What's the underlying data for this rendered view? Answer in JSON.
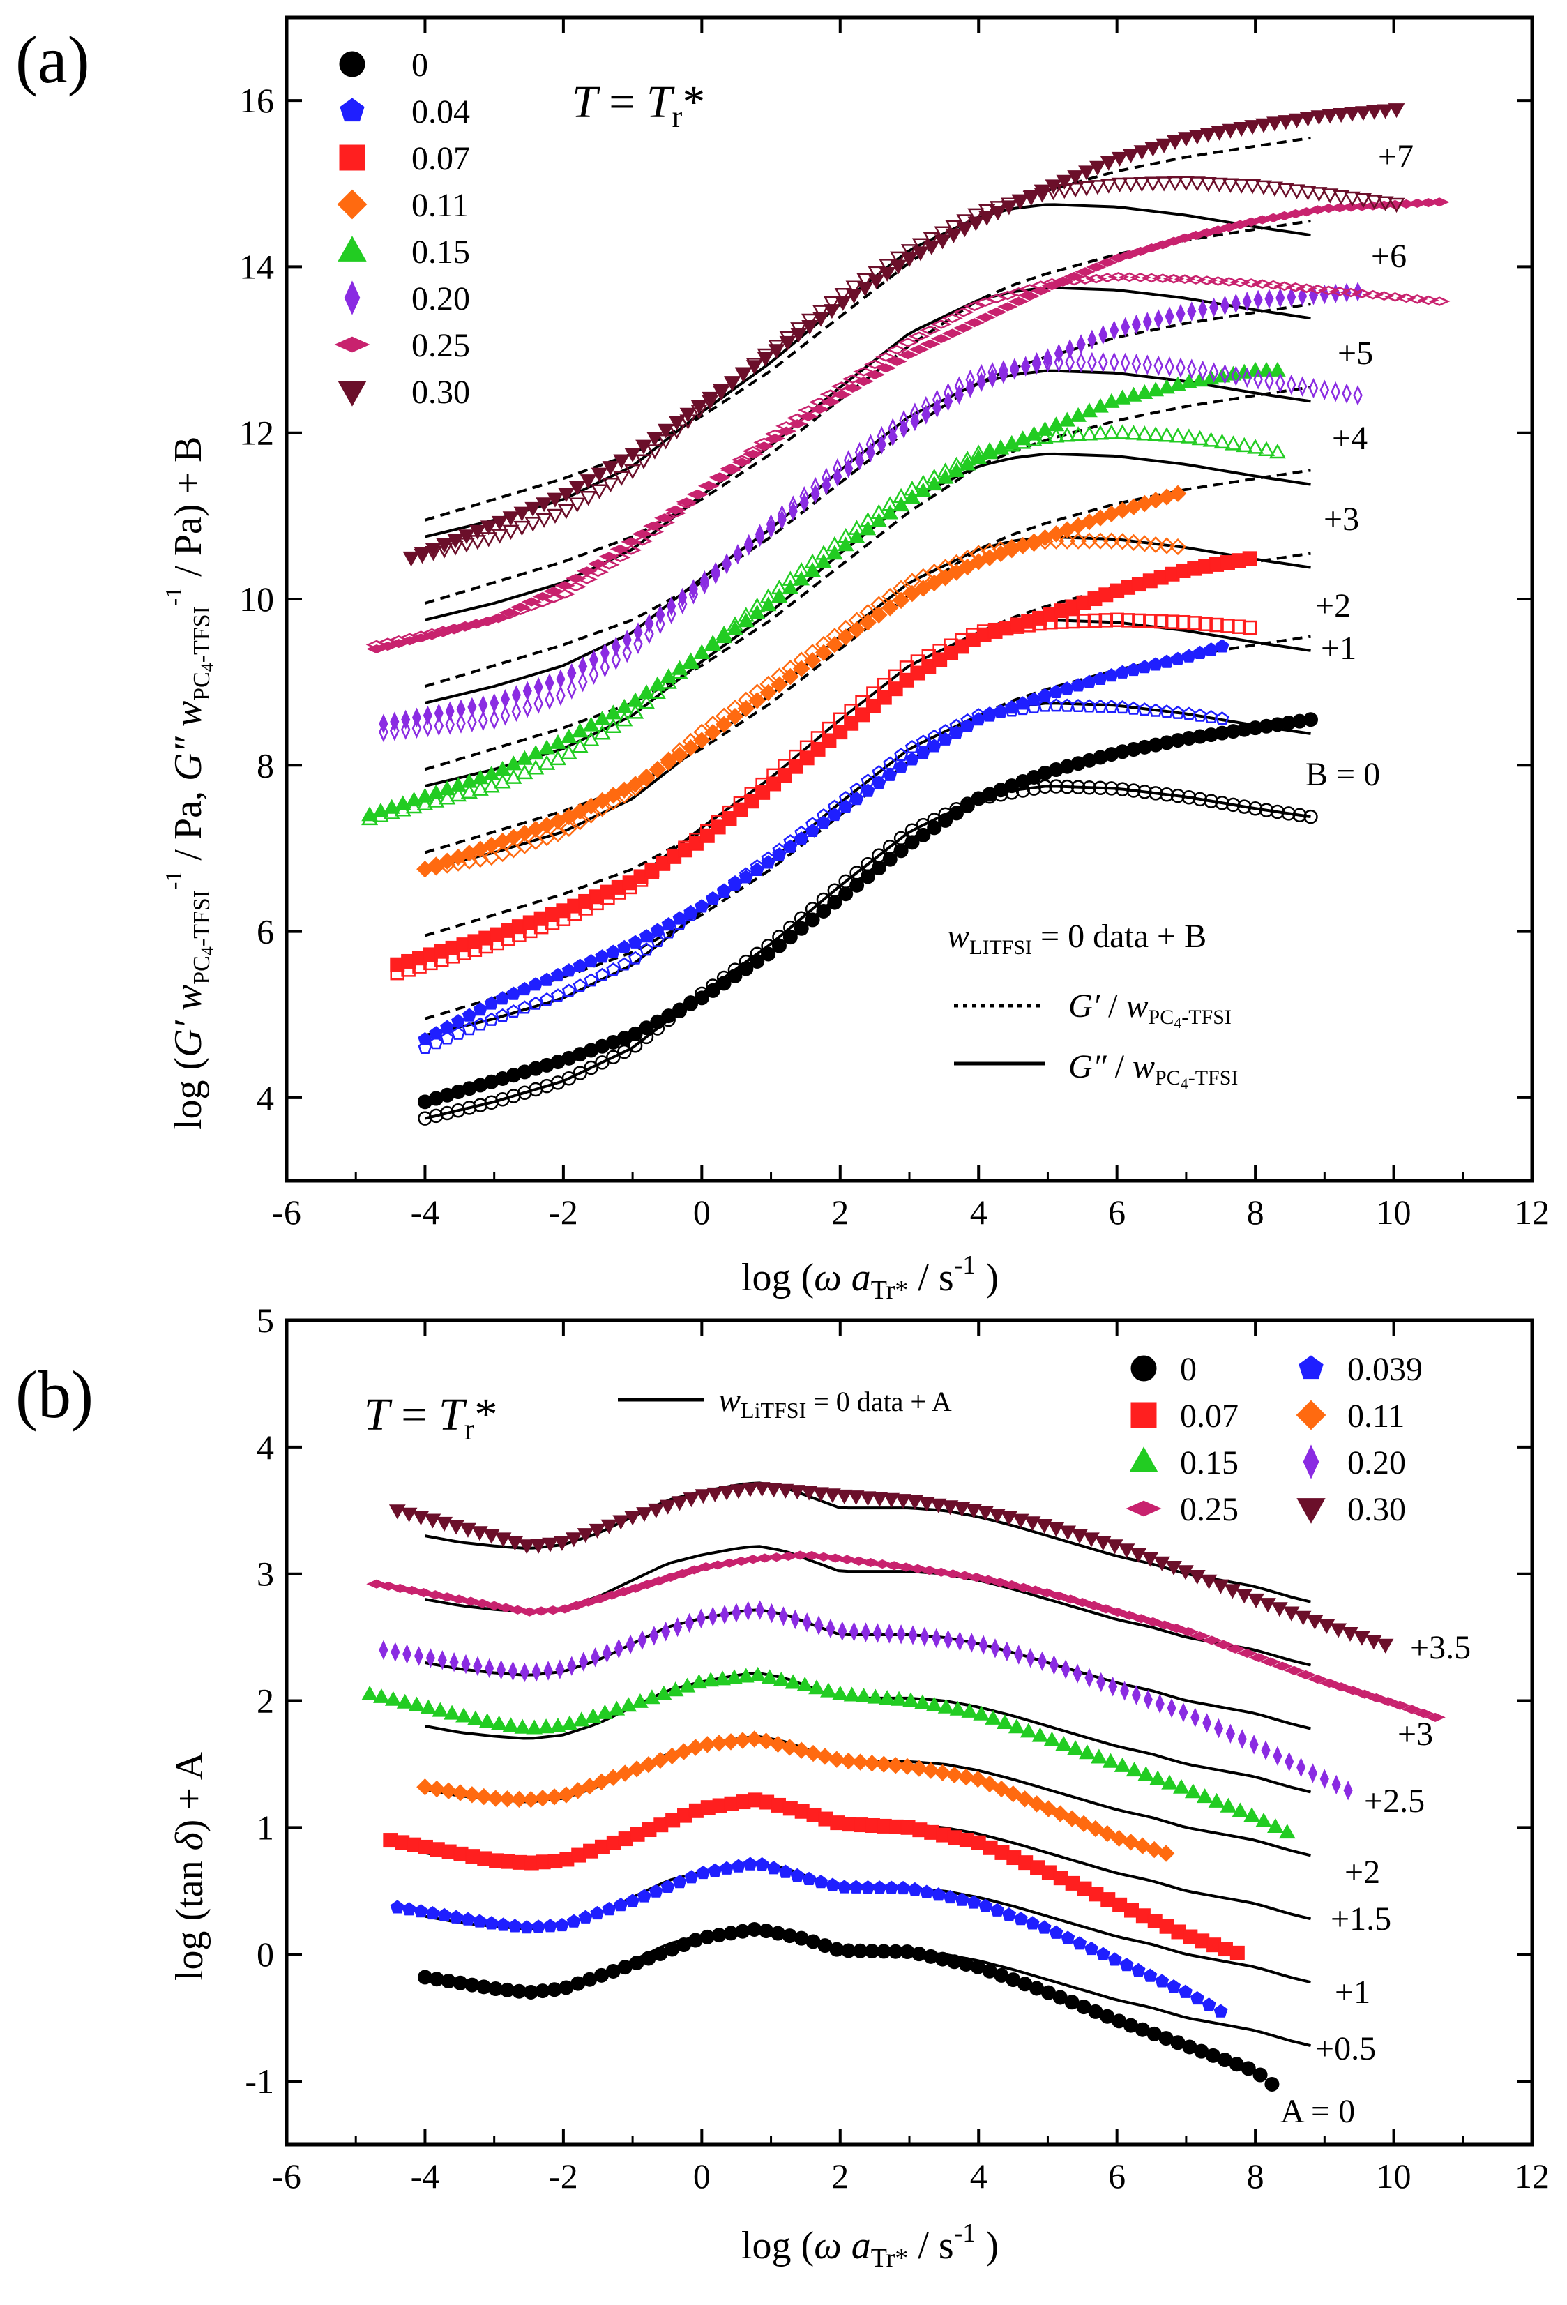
{
  "colors": {
    "0": "#000000",
    "0.04": "#1f1fff",
    "0.039": "#1f1fff",
    "0.07": "#ff1f1f",
    "0.11": "#ff6a10",
    "0.15": "#22cc22",
    "0.20": "#8a2be2",
    "0.25": "#c8226e",
    "0.30": "#6b0f2a"
  },
  "chart_data": [
    {
      "type": "line",
      "panel": "(a)",
      "title": "T = Tr*",
      "xlabel": "log (ω aTr* / s-1)",
      "ylabel": "log (G′ wPC4-TFSI-1 / Pa,  G″ wPC4-TFSI-1 / Pa) + B",
      "xlim": [
        -6,
        12
      ],
      "ylim": [
        3,
        17
      ],
      "xticks": [
        -6,
        -4,
        -2,
        0,
        2,
        4,
        6,
        8,
        10,
        12
      ],
      "yticks": [
        4,
        6,
        8,
        10,
        12,
        14,
        16
      ],
      "legend_position": "top-left",
      "legend_markers": [
        {
          "label": "0",
          "marker": "circle",
          "color_key": "0"
        },
        {
          "label": "0.04",
          "marker": "pentagon",
          "color_key": "0.04"
        },
        {
          "label": "0.07",
          "marker": "square",
          "color_key": "0.07"
        },
        {
          "label": "0.11",
          "marker": "diamond",
          "color_key": "0.11"
        },
        {
          "label": "0.15",
          "marker": "triangle-up",
          "color_key": "0.15"
        },
        {
          "label": "0.20",
          "marker": "thin-diamond",
          "color_key": "0.20"
        },
        {
          "label": "0.25",
          "marker": "wide-diamond",
          "color_key": "0.25"
        },
        {
          "label": "0.30",
          "marker": "triangle-down",
          "color_key": "0.30"
        }
      ],
      "legend_lines": {
        "header": "wLiTFSI = 0  data  + B",
        "dotted": "G′ / wPC4-TFSI",
        "solid": "G″ / wPC4-TFSI"
      },
      "reference_curves": {
        "x": [
          -4,
          -3,
          -2,
          -1,
          0,
          1,
          2,
          3,
          4,
          4.5,
          5,
          6,
          7,
          8,
          8.8
        ],
        "Gprime": [
          3.95,
          4.2,
          4.45,
          4.75,
          5.2,
          5.75,
          6.4,
          7.05,
          7.6,
          7.78,
          7.92,
          8.15,
          8.32,
          8.45,
          8.55
        ],
        "Gdoubleprime": [
          3.75,
          3.95,
          4.2,
          4.6,
          5.25,
          5.85,
          6.55,
          7.2,
          7.6,
          7.7,
          7.75,
          7.72,
          7.62,
          7.48,
          7.38
        ]
      },
      "series": [
        {
          "name": "0",
          "shift_B": 0,
          "x": [
            -4,
            -3,
            -2,
            -1,
            0,
            1,
            2,
            3,
            4,
            5,
            6,
            7,
            8,
            8.8
          ],
          "Gprime": [
            3.95,
            4.2,
            4.45,
            4.75,
            5.2,
            5.75,
            6.4,
            7.05,
            7.6,
            7.92,
            8.15,
            8.32,
            8.45,
            8.55
          ],
          "Gdoubleprime": [
            3.75,
            3.95,
            4.2,
            4.6,
            5.25,
            5.85,
            6.55,
            7.2,
            7.6,
            7.75,
            7.72,
            7.62,
            7.48,
            7.38
          ]
        },
        {
          "name": "0.04",
          "shift_B": 1,
          "x": [
            -4,
            -3,
            -2,
            -1,
            0,
            1,
            2,
            3,
            4,
            5,
            6,
            7,
            7.6
          ],
          "Gprime": [
            4.7,
            5.15,
            5.5,
            5.85,
            6.3,
            6.85,
            7.45,
            8.05,
            8.55,
            8.85,
            9.1,
            9.3,
            9.45
          ],
          "Gdoubleprime": [
            4.6,
            4.95,
            5.25,
            5.65,
            6.3,
            6.9,
            7.55,
            8.2,
            8.6,
            8.72,
            8.7,
            8.62,
            8.55
          ]
        },
        {
          "name": "0.07",
          "shift_B": 2,
          "x": [
            -4.4,
            -3,
            -2,
            -1,
            0,
            1,
            2,
            3,
            4,
            5,
            6,
            7,
            8
          ],
          "Gprime": [
            5.6,
            5.95,
            6.25,
            6.6,
            7.1,
            7.75,
            8.4,
            9.05,
            9.55,
            9.8,
            10.1,
            10.35,
            10.5
          ],
          "Gdoubleprime": [
            5.5,
            5.85,
            6.15,
            6.55,
            7.15,
            7.85,
            8.55,
            9.2,
            9.6,
            9.72,
            9.75,
            9.72,
            9.65
          ]
        },
        {
          "name": "0.11",
          "shift_B": 3,
          "x": [
            -4,
            -3,
            -2,
            -1,
            0,
            1,
            2,
            3,
            4,
            5,
            6,
            7
          ],
          "Gprime": [
            6.75,
            7.05,
            7.35,
            7.75,
            8.3,
            8.9,
            9.5,
            10.05,
            10.45,
            10.75,
            11.05,
            11.3
          ],
          "Gdoubleprime": [
            6.75,
            6.9,
            7.2,
            7.7,
            8.4,
            9.0,
            9.6,
            10.2,
            10.55,
            10.7,
            10.7,
            10.62
          ]
        },
        {
          "name": "0.15",
          "shift_B": 4,
          "x": [
            -4.8,
            -3,
            -2,
            -1,
            0,
            1,
            2,
            3,
            4,
            5,
            6,
            7,
            8,
            8.4
          ],
          "Gprime": [
            7.4,
            7.9,
            8.3,
            8.75,
            9.35,
            9.95,
            10.6,
            11.2,
            11.7,
            12.05,
            12.4,
            12.6,
            12.75,
            12.75
          ],
          "Gdoubleprime": [
            7.35,
            7.75,
            8.1,
            8.6,
            9.35,
            10.05,
            10.7,
            11.3,
            11.75,
            11.95,
            12.0,
            11.95,
            11.82,
            11.75
          ]
        },
        {
          "name": "0.20",
          "shift_B": 5,
          "x": [
            -4.6,
            -3,
            -2,
            -1,
            0,
            1,
            2,
            3,
            4,
            5,
            6,
            7,
            8,
            9.5
          ],
          "Gprime": [
            8.5,
            8.75,
            9.05,
            9.55,
            10.2,
            10.85,
            11.5,
            12.1,
            12.6,
            12.9,
            13.25,
            13.45,
            13.6,
            13.7
          ],
          "Gdoubleprime": [
            8.4,
            8.55,
            8.85,
            9.4,
            10.15,
            10.9,
            11.6,
            12.2,
            12.7,
            12.85,
            12.85,
            12.78,
            12.65,
            12.45
          ]
        },
        {
          "name": "0.25",
          "shift_B": 6,
          "x": [
            -4.7,
            -3,
            -2,
            -1,
            0,
            1,
            2,
            3,
            4,
            5,
            6,
            7,
            8,
            9,
            10.7
          ],
          "Gprime": [
            9.4,
            9.75,
            10.15,
            10.7,
            11.3,
            11.9,
            12.45,
            12.95,
            13.35,
            13.75,
            14.1,
            14.35,
            14.55,
            14.7,
            14.78
          ],
          "Gdoubleprime": [
            9.45,
            9.75,
            10.05,
            10.6,
            11.3,
            11.95,
            12.55,
            13.1,
            13.55,
            13.8,
            13.88,
            13.85,
            13.8,
            13.72,
            13.58
          ]
        },
        {
          "name": "0.30",
          "shift_B": 7,
          "x": [
            -4.2,
            -3,
            -2,
            -1,
            0,
            1,
            2,
            3,
            4,
            5,
            6,
            7,
            8,
            9,
            10.1
          ],
          "Gprime": [
            10.5,
            10.9,
            11.25,
            11.75,
            12.35,
            12.95,
            13.55,
            14.1,
            14.55,
            14.95,
            15.3,
            15.55,
            15.7,
            15.82,
            15.9
          ],
          "Gdoubleprime": [
            10.5,
            10.75,
            11.05,
            11.55,
            12.3,
            13.0,
            13.65,
            14.2,
            14.65,
            14.9,
            15.0,
            15.02,
            14.98,
            14.88,
            14.75
          ]
        }
      ],
      "shift_labels": [
        "B = 0",
        "+1",
        "+2",
        "+3",
        "+4",
        "+5",
        "+6",
        "+7"
      ]
    },
    {
      "type": "line",
      "panel": "(b)",
      "title": "T = Tr*",
      "xlabel": "log (ω aTr* / s-1)",
      "ylabel": "log (tan δ) + A",
      "xlim": [
        -6,
        12
      ],
      "ylim": [
        -1.5,
        5
      ],
      "xticks": [
        -6,
        -4,
        -2,
        0,
        2,
        4,
        6,
        8,
        10,
        12
      ],
      "yticks": [
        -1,
        0,
        1,
        2,
        3,
        4,
        5
      ],
      "legend_position": "top-right",
      "legend_line": "wLiTFSI = 0 data + A",
      "legend_markers": [
        {
          "label": "0",
          "marker": "circle",
          "color_key": "0"
        },
        {
          "label": "0.039",
          "marker": "pentagon",
          "color_key": "0.039"
        },
        {
          "label": "0.07",
          "marker": "square",
          "color_key": "0.07"
        },
        {
          "label": "0.11",
          "marker": "diamond",
          "color_key": "0.11"
        },
        {
          "label": "0.15",
          "marker": "triangle-up",
          "color_key": "0.15"
        },
        {
          "label": "0.20",
          "marker": "thin-diamond",
          "color_key": "0.20"
        },
        {
          "label": "0.25",
          "marker": "wide-diamond",
          "color_key": "0.25"
        },
        {
          "label": "0.30",
          "marker": "triangle-down",
          "color_key": "0.30"
        }
      ],
      "reference_curve": {
        "x": [
          -4,
          -3.5,
          -3,
          -2.5,
          -2,
          -1.5,
          -1,
          -0.5,
          0,
          0.5,
          0.8,
          1.2,
          1.6,
          2,
          2.5,
          3,
          3.5,
          4,
          4.5,
          5,
          5.5,
          6,
          6.5,
          7,
          7.5,
          8,
          8.5,
          8.8
        ],
        "y": [
          -0.2,
          -0.25,
          -0.28,
          -0.3,
          -0.27,
          -0.18,
          -0.05,
          0.08,
          0.15,
          0.2,
          0.22,
          0.18,
          0.1,
          0.02,
          0.02,
          0.02,
          0.0,
          -0.05,
          -0.12,
          -0.2,
          -0.28,
          -0.36,
          -0.42,
          -0.5,
          -0.55,
          -0.6,
          -0.68,
          -0.72
        ]
      },
      "series": [
        {
          "name": "0",
          "shift_A": 0,
          "x": [
            -4,
            -3,
            -2.5,
            -2,
            -1,
            0,
            0.8,
            1.5,
            2,
            3,
            4,
            5,
            6,
            7,
            8,
            8.3
          ],
          "y": [
            -0.18,
            -0.27,
            -0.3,
            -0.27,
            -0.08,
            0.13,
            0.2,
            0.12,
            0.03,
            0.02,
            -0.1,
            -0.3,
            -0.52,
            -0.72,
            -0.92,
            -1.05
          ]
        },
        {
          "name": "0.039",
          "shift_A": 0.5,
          "x": [
            -4.4,
            -3,
            -2.5,
            -2,
            -1,
            0,
            0.8,
            1.5,
            2,
            3,
            4,
            5,
            6,
            7,
            7.5
          ],
          "y": [
            0.37,
            0.24,
            0.21,
            0.23,
            0.42,
            0.64,
            0.72,
            0.6,
            0.53,
            0.52,
            0.4,
            0.2,
            -0.05,
            -0.3,
            -0.45
          ]
        },
        {
          "name": "0.07",
          "shift_A": 1,
          "x": [
            -4.5,
            -3,
            -2.5,
            -2,
            -1,
            0,
            0.8,
            1.5,
            2,
            3,
            4,
            5,
            6,
            7,
            7.9
          ],
          "y": [
            0.9,
            0.74,
            0.72,
            0.74,
            0.93,
            1.15,
            1.22,
            1.12,
            1.03,
            1.0,
            0.88,
            0.65,
            0.4,
            0.15,
            -0.02
          ]
        },
        {
          "name": "0.11",
          "shift_A": 1.5,
          "x": [
            -4,
            -3,
            -2.5,
            -2,
            -1,
            0,
            0.8,
            1.5,
            2,
            3,
            4,
            5,
            6,
            6.8
          ],
          "y": [
            1.32,
            1.23,
            1.22,
            1.25,
            1.45,
            1.65,
            1.7,
            1.6,
            1.53,
            1.48,
            1.38,
            1.15,
            0.92,
            0.78
          ]
        },
        {
          "name": "0.15",
          "shift_A": 2,
          "x": [
            -4.8,
            -3,
            -2.5,
            -2,
            -1,
            0,
            0.8,
            1.5,
            2,
            3,
            4,
            5,
            6,
            7,
            8,
            8.5
          ],
          "y": [
            2.05,
            1.82,
            1.78,
            1.8,
            1.97,
            2.15,
            2.2,
            2.12,
            2.05,
            2.0,
            1.9,
            1.7,
            1.5,
            1.3,
            1.08,
            0.95
          ]
        },
        {
          "name": "0.20",
          "shift_A": 2.5,
          "x": [
            -4.6,
            -3,
            -2.5,
            -2,
            -1,
            0,
            0.8,
            1.5,
            2,
            3,
            4,
            5,
            6,
            7,
            8,
            9.5
          ],
          "y": [
            2.4,
            2.25,
            2.22,
            2.25,
            2.45,
            2.65,
            2.72,
            2.62,
            2.55,
            2.52,
            2.45,
            2.3,
            2.1,
            1.9,
            1.65,
            1.25
          ]
        },
        {
          "name": "0.25",
          "shift_A": 3,
          "x": [
            -4.7,
            -3,
            -2.5,
            -2,
            -1,
            0,
            0.8,
            1.5,
            2,
            3,
            4,
            5,
            6,
            7,
            8,
            9,
            10,
            10.7
          ],
          "y": [
            2.92,
            2.75,
            2.7,
            2.72,
            2.88,
            3.05,
            3.12,
            3.15,
            3.12,
            3.05,
            2.97,
            2.85,
            2.7,
            2.55,
            2.35,
            2.15,
            1.98,
            1.85
          ]
        },
        {
          "name": "0.30",
          "shift_A": 3.5,
          "x": [
            -4.4,
            -3,
            -2.5,
            -2,
            -1,
            0,
            0.8,
            1.5,
            2,
            3,
            4,
            5,
            6,
            7,
            8,
            9,
            10
          ],
          "y": [
            3.5,
            3.3,
            3.22,
            3.25,
            3.45,
            3.62,
            3.68,
            3.65,
            3.62,
            3.58,
            3.5,
            3.38,
            3.22,
            3.02,
            2.8,
            2.6,
            2.42
          ]
        }
      ],
      "shift_labels": [
        "A = 0",
        "+0.5",
        "+1",
        "+1.5",
        "+2",
        "+2.5",
        "+3",
        "+3.5"
      ]
    }
  ]
}
